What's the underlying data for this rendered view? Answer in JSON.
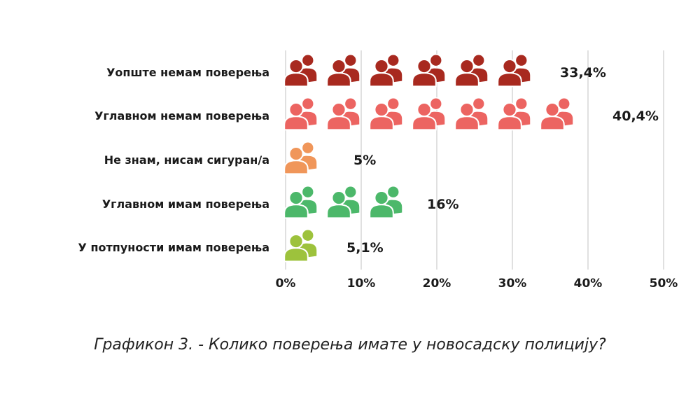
{
  "chart_data": {
    "type": "bar",
    "subtype": "pictogram",
    "title": "",
    "caption": "Графикон 3. - Колико поверења имате у новосадску полицију?",
    "categories": [
      "Уопште немам поверења",
      "Углавном немам поверења",
      "Не знам, нисам сигуран/а",
      "Углавном имам поверења",
      "У потпуности имам поверења"
    ],
    "values": [
      33.4,
      40.4,
      5,
      16,
      5.1
    ],
    "value_labels": [
      "33,4%",
      "40,4%",
      "5%",
      "16%",
      "5,1%"
    ],
    "icon_counts": [
      6,
      7,
      1,
      3,
      1
    ],
    "colors": [
      "#a8291f",
      "#ec6461",
      "#f0965a",
      "#4cb86a",
      "#9dc23c"
    ],
    "icon": "people-icon",
    "xlim": [
      0,
      50
    ],
    "xticks": [
      0,
      10,
      20,
      30,
      40,
      50
    ],
    "xtick_labels": [
      "0%",
      "10%",
      "20%",
      "30%",
      "40%",
      "50%"
    ],
    "grid": "vertical",
    "legend": "none"
  }
}
